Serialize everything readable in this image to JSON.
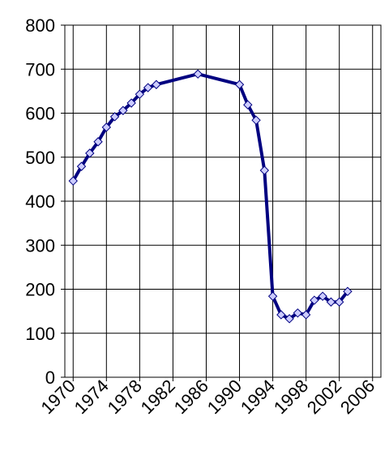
{
  "chart_data": {
    "type": "line",
    "x": [
      1970,
      1971,
      1972,
      1973,
      1974,
      1975,
      1976,
      1977,
      1978,
      1979,
      1980,
      1985,
      1990,
      1991,
      1992,
      1993,
      1994,
      1995,
      1996,
      1997,
      1998,
      1999,
      2000,
      2001,
      2002,
      2003
    ],
    "values": [
      446,
      479,
      509,
      535,
      568,
      592,
      606,
      623,
      643,
      658,
      665,
      689,
      665,
      619,
      584,
      470,
      184,
      142,
      133,
      146,
      142,
      175,
      184,
      171,
      171,
      195
    ],
    "color": "#000080",
    "marker_color": "#ccccff",
    "xlim": [
      1969,
      2007
    ],
    "xticks": [
      1970,
      1974,
      1978,
      1982,
      1986,
      1990,
      1994,
      1998,
      2002,
      2006
    ],
    "ylim": [
      0,
      800
    ],
    "yticks": [
      0,
      100,
      200,
      300,
      400,
      500,
      600,
      700,
      800
    ],
    "grid": true
  }
}
